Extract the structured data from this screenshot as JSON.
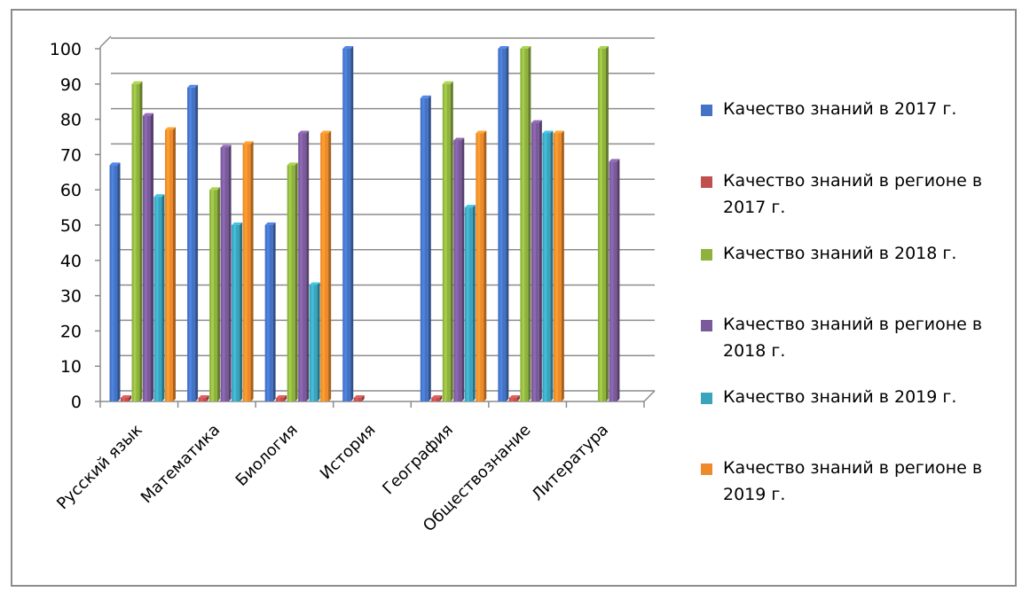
{
  "chart_data": {
    "type": "bar",
    "categories": [
      "Русский язык",
      "Математика",
      "Биология",
      "История",
      "География",
      "Обществознание",
      "Литература"
    ],
    "ylim": [
      0,
      100
    ],
    "yticks": [
      0,
      10,
      20,
      30,
      40,
      50,
      60,
      70,
      80,
      90,
      100
    ],
    "grid": true,
    "legend_position": "right",
    "series": [
      {
        "name": "Качество знаний в 2017 г.",
        "color": "#4472c4",
        "values": [
          67,
          89,
          50,
          100,
          86,
          100,
          null
        ]
      },
      {
        "name": "Качество знаний в регионе в 2017 г.",
        "color": "#c0504d",
        "values": [
          1,
          1,
          1,
          1,
          1,
          1,
          null
        ]
      },
      {
        "name": "Качество знаний в 2018 г.",
        "color": "#8fb23f",
        "values": [
          90,
          60,
          67,
          null,
          90,
          100,
          100
        ]
      },
      {
        "name": "Качество знаний в регионе в 2018 г.",
        "color": "#7b5a9c",
        "values": [
          81,
          72,
          76,
          null,
          74,
          79,
          68
        ]
      },
      {
        "name": "Качество знаний в 2019 г.",
        "color": "#3aa4bd",
        "values": [
          58,
          50,
          33,
          null,
          55,
          76,
          null
        ]
      },
      {
        "name": "Качество знаний в регионе в 2019 г.",
        "color": "#ef8a2a",
        "values": [
          77,
          73,
          76,
          null,
          76,
          76,
          null
        ]
      }
    ]
  }
}
